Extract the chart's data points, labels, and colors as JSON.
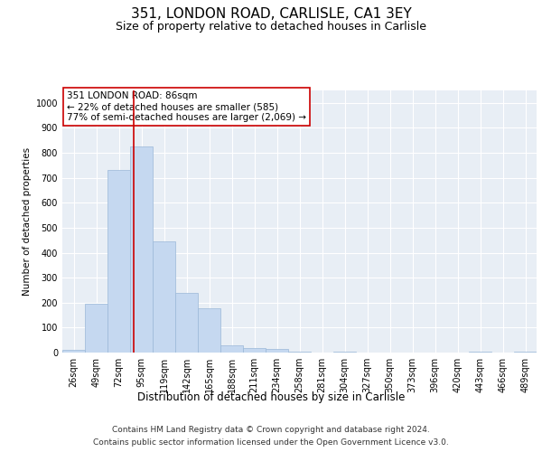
{
  "title1": "351, LONDON ROAD, CARLISLE, CA1 3EY",
  "title2": "Size of property relative to detached houses in Carlisle",
  "xlabel": "Distribution of detached houses by size in Carlisle",
  "ylabel": "Number of detached properties",
  "categories": [
    "26sqm",
    "49sqm",
    "72sqm",
    "95sqm",
    "119sqm",
    "142sqm",
    "165sqm",
    "188sqm",
    "211sqm",
    "234sqm",
    "258sqm",
    "281sqm",
    "304sqm",
    "327sqm",
    "350sqm",
    "373sqm",
    "396sqm",
    "420sqm",
    "443sqm",
    "466sqm",
    "489sqm"
  ],
  "values": [
    10,
    195,
    730,
    825,
    445,
    240,
    178,
    30,
    18,
    14,
    5,
    0,
    5,
    0,
    0,
    0,
    0,
    0,
    5,
    0,
    5
  ],
  "bar_color": "#c5d8f0",
  "bar_edge_color": "#9ab8d8",
  "vline_x": 2.65,
  "vline_color": "#cc0000",
  "annotation_text": "351 LONDON ROAD: 86sqm\n← 22% of detached houses are smaller (585)\n77% of semi-detached houses are larger (2,069) →",
  "annotation_box_color": "#ffffff",
  "annotation_box_edge_color": "#cc0000",
  "ylim": [
    0,
    1050
  ],
  "yticks": [
    0,
    100,
    200,
    300,
    400,
    500,
    600,
    700,
    800,
    900,
    1000
  ],
  "plot_bg_color": "#e8eef5",
  "footer1": "Contains HM Land Registry data © Crown copyright and database right 2024.",
  "footer2": "Contains public sector information licensed under the Open Government Licence v3.0.",
  "title1_fontsize": 11,
  "title2_fontsize": 9,
  "xlabel_fontsize": 8.5,
  "ylabel_fontsize": 7.5,
  "tick_fontsize": 7,
  "annotation_fontsize": 7.5,
  "footer_fontsize": 6.5
}
